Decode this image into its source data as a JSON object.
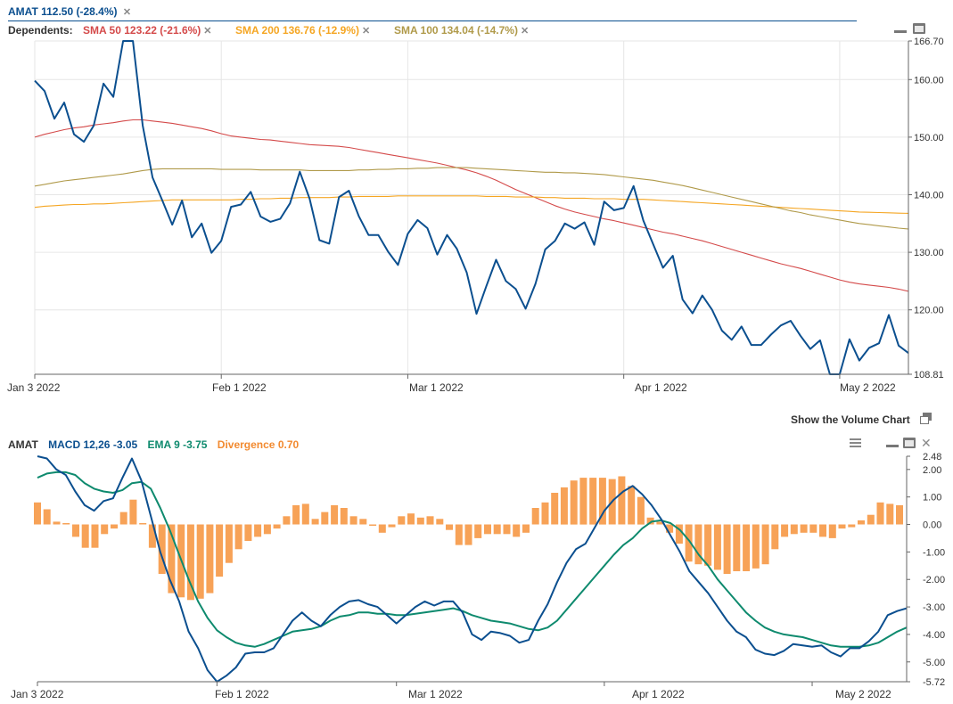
{
  "colors": {
    "price": "#0b4f8f",
    "sma50": "#d44a4a",
    "sma200": "#f5a623",
    "sma100": "#b09a4a",
    "macd": "#0b4f8f",
    "ema": "#0e8a6e",
    "divergence": "#f7a257",
    "grid": "#e6e6e6",
    "axis": "#666666"
  },
  "header": {
    "ticker_label": "AMAT 112.50 (-28.4%)",
    "dependents_label": "Dependents:",
    "dependents": [
      {
        "label": "SMA 50 123.22 (-21.6%)",
        "color": "#d44a4a"
      },
      {
        "label": "SMA 200 136.76 (-12.9%)",
        "color": "#f5a623"
      },
      {
        "label": "SMA 100 134.04 (-14.7%)",
        "color": "#b09a4a"
      }
    ],
    "remove_icon": "close-icon"
  },
  "volume_link": "Show the Volume Chart",
  "macd_header": {
    "ticker": "AMAT",
    "macd_label": "MACD 12,26 -3.05",
    "ema_label": "EMA 9 -3.75",
    "divergence_label": "Divergence 0.70"
  },
  "controls": [
    "minimize-icon",
    "maximize-icon",
    "menu-icon",
    "close-icon",
    "window-icon"
  ],
  "chart_data": [
    {
      "type": "line",
      "title": "AMAT",
      "x_ticks": [
        "Jan 3 2022",
        "Feb 1 2022",
        "Mar 1 2022",
        "Apr 1 2022",
        "May 2 2022"
      ],
      "y_ticks": [
        "166.70",
        "160.00",
        "150.00",
        "140.00",
        "130.00",
        "120.00",
        "108.81"
      ],
      "ylim": [
        108.81,
        166.7
      ],
      "grid": true,
      "series": [
        {
          "name": "AMAT",
          "values": [
            159.8,
            158,
            153.2,
            156,
            150.5,
            149.2,
            152,
            159.3,
            157,
            166.7,
            166.7,
            152,
            143,
            139,
            134.8,
            139,
            132.6,
            135,
            129.9,
            132,
            137.9,
            138.3,
            140.5,
            136.2,
            135.3,
            135.8,
            138.5,
            144,
            139.3,
            132.1,
            131.5,
            139.6,
            140.7,
            136.3,
            133,
            133,
            130.1,
            127.8,
            133.2,
            135.6,
            134.2,
            129.6,
            133,
            130.6,
            126.5,
            119.3,
            124.1,
            128.7,
            125,
            123.6,
            120.2,
            124.5,
            130.5,
            132,
            135,
            134.1,
            135.2,
            131.3,
            138.8,
            137.3,
            137.7,
            141.5,
            135.5,
            131.4,
            127.3,
            129.4,
            121.8,
            119.4,
            122.5,
            120,
            116.4,
            114.8,
            117.1,
            113.9,
            113.9,
            115.7,
            117.3,
            118.1,
            115.5,
            113.2,
            114.7,
            108.81,
            108.81,
            114.9,
            111.2,
            113.4,
            114.2,
            119.1,
            113.8,
            112.5
          ]
        },
        {
          "name": "SMA 50",
          "values": [
            150,
            150.5,
            150.9,
            151.3,
            151.6,
            151.8,
            152.1,
            152.3,
            152.5,
            152.8,
            153,
            153,
            152.8,
            152.6,
            152.4,
            152.1,
            151.8,
            151.5,
            151.1,
            150.6,
            150.2,
            150,
            149.8,
            149.6,
            149.5,
            149.3,
            149.1,
            148.9,
            148.7,
            148.6,
            148.5,
            148.4,
            148.2,
            147.9,
            147.6,
            147.3,
            147,
            146.7,
            146.4,
            146.1,
            145.8,
            145.5,
            145.1,
            144.7,
            144.3,
            143.8,
            143.2,
            142.5,
            141.7,
            140.9,
            140.2,
            139.5,
            138.8,
            138.1,
            137.5,
            137,
            136.6,
            136.2,
            135.8,
            135.5,
            135.1,
            134.7,
            134.3,
            133.9,
            133.5,
            133.2,
            132.8,
            132.4,
            132,
            131.5,
            131,
            130.5,
            130,
            129.5,
            129,
            128.5,
            128,
            127.6,
            127.2,
            126.7,
            126.2,
            125.7,
            125.2,
            124.8,
            124.5,
            124.3,
            124.1,
            123.9,
            123.6,
            123.22
          ]
        },
        {
          "name": "SMA 200",
          "values": [
            137.8,
            138,
            138.1,
            138.2,
            138.3,
            138.3,
            138.4,
            138.4,
            138.5,
            138.6,
            138.7,
            138.8,
            138.9,
            139,
            139.1,
            139.1,
            139.1,
            139.1,
            139.1,
            139.1,
            139.1,
            139.2,
            139.2,
            139.3,
            139.3,
            139.4,
            139.4,
            139.5,
            139.5,
            139.5,
            139.5,
            139.6,
            139.6,
            139.7,
            139.7,
            139.7,
            139.7,
            139.8,
            139.8,
            139.8,
            139.8,
            139.8,
            139.8,
            139.8,
            139.8,
            139.8,
            139.7,
            139.7,
            139.7,
            139.6,
            139.6,
            139.6,
            139.5,
            139.5,
            139.4,
            139.4,
            139.4,
            139.3,
            139.3,
            139.3,
            139.2,
            139.2,
            139.2,
            139.1,
            139,
            138.9,
            138.8,
            138.7,
            138.6,
            138.5,
            138.4,
            138.3,
            138.2,
            138.1,
            138,
            137.9,
            137.8,
            137.7,
            137.6,
            137.5,
            137.4,
            137.3,
            137.2,
            137.1,
            137,
            136.95,
            136.9,
            136.85,
            136.8,
            136.76
          ]
        },
        {
          "name": "SMA 100",
          "values": [
            141.5,
            141.8,
            142.1,
            142.4,
            142.6,
            142.8,
            143,
            143.2,
            143.4,
            143.6,
            143.9,
            144.2,
            144.4,
            144.5,
            144.5,
            144.5,
            144.5,
            144.5,
            144.5,
            144.4,
            144.4,
            144.4,
            144.4,
            144.3,
            144.3,
            144.3,
            144.3,
            144.3,
            144.2,
            144.2,
            144.2,
            144.2,
            144.2,
            144.3,
            144.3,
            144.4,
            144.4,
            144.5,
            144.5,
            144.6,
            144.6,
            144.7,
            144.7,
            144.7,
            144.7,
            144.6,
            144.5,
            144.4,
            144.3,
            144.2,
            144.1,
            144,
            143.9,
            143.9,
            143.8,
            143.8,
            143.7,
            143.6,
            143.5,
            143.3,
            143.1,
            142.9,
            142.7,
            142.5,
            142.2,
            141.9,
            141.6,
            141.2,
            140.8,
            140.4,
            140,
            139.6,
            139.2,
            138.8,
            138.4,
            138,
            137.6,
            137.2,
            136.9,
            136.5,
            136.2,
            135.9,
            135.6,
            135.3,
            135,
            134.8,
            134.6,
            134.4,
            134.2,
            134.04
          ]
        }
      ]
    },
    {
      "type": "line",
      "title": "MACD",
      "x_ticks": [
        "Jan 3 2022",
        "Feb 1 2022",
        "Mar 1 2022",
        "Apr 1 2022",
        "May 2 2022"
      ],
      "y_ticks": [
        "2.48",
        "2.00",
        "1.00",
        "0.00",
        "-1.00",
        "-2.00",
        "-3.00",
        "-4.00",
        "-5.00",
        "-5.72"
      ],
      "ylim": [
        -5.72,
        2.48
      ],
      "grid": false,
      "series": [
        {
          "name": "MACD 12,26",
          "values": [
            2.48,
            2.4,
            2,
            1.8,
            1.2,
            0.7,
            0.5,
            0.85,
            0.95,
            1.7,
            2.4,
            1.6,
            0.3,
            -1,
            -2,
            -2.8,
            -3.9,
            -4.5,
            -5.3,
            -5.72,
            -5.5,
            -5.2,
            -4.7,
            -4.65,
            -4.65,
            -4.5,
            -4,
            -3.5,
            -3.2,
            -3.5,
            -3.7,
            -3.3,
            -3,
            -2.8,
            -2.75,
            -2.9,
            -3,
            -3.3,
            -3.6,
            -3.3,
            -3,
            -2.8,
            -2.95,
            -2.8,
            -2.8,
            -3.2,
            -4,
            -4.2,
            -3.9,
            -3.95,
            -4.05,
            -4.3,
            -4.2,
            -3.5,
            -2.9,
            -2.1,
            -1.4,
            -0.9,
            -0.7,
            -0.1,
            0.5,
            0.9,
            1.2,
            1.4,
            1.1,
            0.7,
            0.2,
            -0.4,
            -1,
            -1.7,
            -2.1,
            -2.5,
            -3,
            -3.5,
            -3.9,
            -4.1,
            -4.55,
            -4.7,
            -4.75,
            -4.6,
            -4.35,
            -4.4,
            -4.45,
            -4.4,
            -4.65,
            -4.8,
            -4.5,
            -4.5,
            -4.25,
            -3.9,
            -3.3,
            -3.15,
            -3.05
          ]
        },
        {
          "name": "EMA 9",
          "values": [
            1.7,
            1.85,
            1.9,
            1.9,
            1.8,
            1.5,
            1.3,
            1.2,
            1.15,
            1.25,
            1.5,
            1.55,
            1.3,
            0.6,
            -0.2,
            -1.1,
            -2,
            -2.8,
            -3.4,
            -3.85,
            -4.1,
            -4.3,
            -4.4,
            -4.45,
            -4.35,
            -4.2,
            -4.05,
            -3.9,
            -3.85,
            -3.8,
            -3.7,
            -3.5,
            -3.35,
            -3.3,
            -3.2,
            -3.2,
            -3.25,
            -3.25,
            -3.3,
            -3.3,
            -3.25,
            -3.2,
            -3.15,
            -3.1,
            -3.05,
            -3.15,
            -3.3,
            -3.4,
            -3.5,
            -3.55,
            -3.6,
            -3.7,
            -3.8,
            -3.85,
            -3.75,
            -3.5,
            -3.1,
            -2.7,
            -2.3,
            -1.9,
            -1.5,
            -1.1,
            -0.75,
            -0.5,
            -0.15,
            0.1,
            0.15,
            0.05,
            -0.2,
            -0.6,
            -1.1,
            -1.5,
            -2,
            -2.4,
            -2.8,
            -3.2,
            -3.5,
            -3.75,
            -3.9,
            -4,
            -4.05,
            -4.1,
            -4.2,
            -4.3,
            -4.4,
            -4.45,
            -4.45,
            -4.45,
            -4.4,
            -4.3,
            -4.1,
            -3.9,
            -3.75
          ]
        },
        {
          "name": "Divergence",
          "type": "bar",
          "values": [
            0.8,
            0.55,
            0.1,
            0.05,
            -0.45,
            -0.85,
            -0.85,
            -0.35,
            -0.15,
            0.45,
            0.9,
            0.05,
            -0.85,
            -1.8,
            -2.5,
            -2.65,
            -2.75,
            -2.7,
            -2.5,
            -1.9,
            -1.4,
            -0.9,
            -0.6,
            -0.45,
            -0.35,
            -0.15,
            0.3,
            0.7,
            0.75,
            0.2,
            0.45,
            0.7,
            0.6,
            0.3,
            0.2,
            -0.05,
            -0.3,
            -0.1,
            0.3,
            0.4,
            0.25,
            0.3,
            0.2,
            -0.2,
            -0.75,
            -0.75,
            -0.5,
            -0.35,
            -0.35,
            -0.35,
            -0.45,
            -0.3,
            0.6,
            0.8,
            1.15,
            1.35,
            1.6,
            1.7,
            1.7,
            1.7,
            1.65,
            1.75,
            1.4,
            1,
            0.25,
            0.1,
            -0.3,
            -0.7,
            -1.35,
            -1.45,
            -1.5,
            -1.65,
            -1.8,
            -1.7,
            -1.7,
            -1.6,
            -1.45,
            -0.9,
            -0.45,
            -0.35,
            -0.3,
            -0.3,
            -0.45,
            -0.5,
            -0.15,
            -0.1,
            0.15,
            0.35,
            0.8,
            0.75,
            0.7
          ]
        }
      ]
    }
  ]
}
